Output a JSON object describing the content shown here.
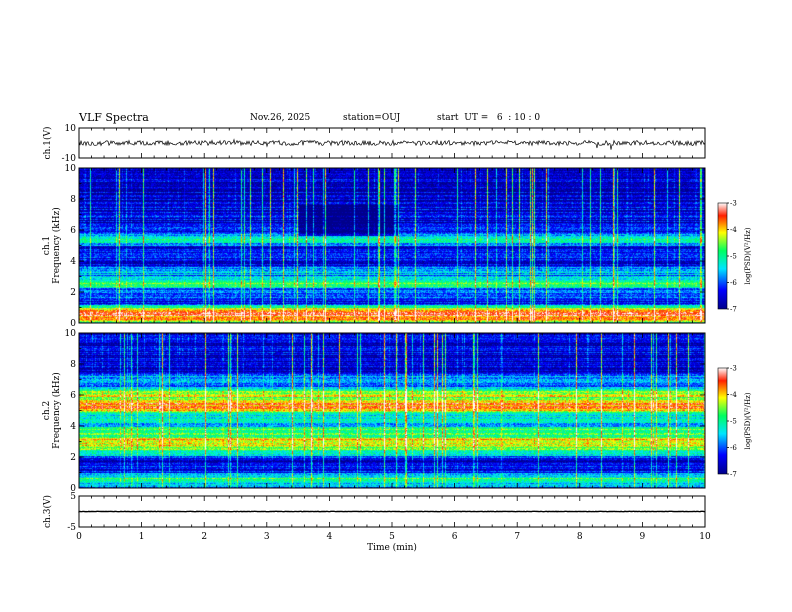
{
  "header": {
    "title": "VLF Spectra",
    "date": "Nov.26, 2025",
    "station": "station=OUJ",
    "start": "start  UT =   6  : 10 : 0"
  },
  "chart_data": {
    "type": "heatmap",
    "xlabel": "Time  (min)",
    "xlim": [
      0,
      10
    ],
    "x_ticks": [
      "0",
      "1",
      "2",
      "3",
      "4",
      "5",
      "6",
      "7",
      "8",
      "9",
      "10"
    ],
    "panels": [
      {
        "kind": "waveform",
        "ylabel": "ch.1(V)",
        "ylim": [
          -10,
          10
        ],
        "y_ticks": [
          "10",
          "-10"
        ]
      },
      {
        "kind": "spectrogram",
        "ylabel": "ch.1\nFrequency  (kHz)",
        "ylim": [
          0,
          10
        ],
        "y_ticks": [
          "0",
          "2",
          "4",
          "6",
          "8",
          "10"
        ],
        "colorbar": {
          "label": "log(PSD)(V²/Hz)",
          "range": [
            -7,
            -3
          ],
          "ticks": [
            "-3",
            "-4",
            "-5",
            "-6",
            "-7"
          ]
        },
        "bands": [
          {
            "f": 0.5,
            "level": -3.6
          },
          {
            "f": 1.2,
            "level": -6.3
          },
          {
            "f": 1.9,
            "level": -5.8
          },
          {
            "f": 2.6,
            "level": -4.9
          },
          {
            "f": 3.3,
            "level": -5.5
          },
          {
            "f": 3.9,
            "level": -6.6
          },
          {
            "f": 4.4,
            "level": -6.0
          },
          {
            "f": 5.4,
            "level": -5.2
          },
          {
            "f": 6.2,
            "level": -6.4
          },
          {
            "f": 7.0,
            "level": -6.2
          },
          {
            "f": 8.6,
            "level": -6.7
          }
        ]
      },
      {
        "kind": "spectrogram",
        "ylabel": "ch.2\nFrequency  (kHz)",
        "ylim": [
          0,
          10
        ],
        "y_ticks": [
          "0",
          "2",
          "4",
          "6",
          "8",
          "10"
        ],
        "colorbar": {
          "label": "log(PSD)(V²/Hz)",
          "range": [
            -7,
            -3
          ],
          "ticks": [
            "-3",
            "-4",
            "-5",
            "-6",
            "-7"
          ]
        },
        "bands": [
          {
            "f": 0.5,
            "level": -5.0
          },
          {
            "f": 1.4,
            "level": -6.2
          },
          {
            "f": 2.4,
            "level": -5.0
          },
          {
            "f": 2.9,
            "level": -3.9
          },
          {
            "f": 3.6,
            "level": -4.8
          },
          {
            "f": 4.4,
            "level": -5.2
          },
          {
            "f": 5.3,
            "level": -3.8
          },
          {
            "f": 6.0,
            "level": -4.4
          },
          {
            "f": 7.0,
            "level": -5.7
          },
          {
            "f": 8.6,
            "level": -6.6
          }
        ]
      },
      {
        "kind": "waveform",
        "ylabel": "ch.3(V)",
        "ylim": [
          -5,
          5
        ],
        "y_ticks": [
          "5",
          "-5"
        ]
      }
    ]
  }
}
